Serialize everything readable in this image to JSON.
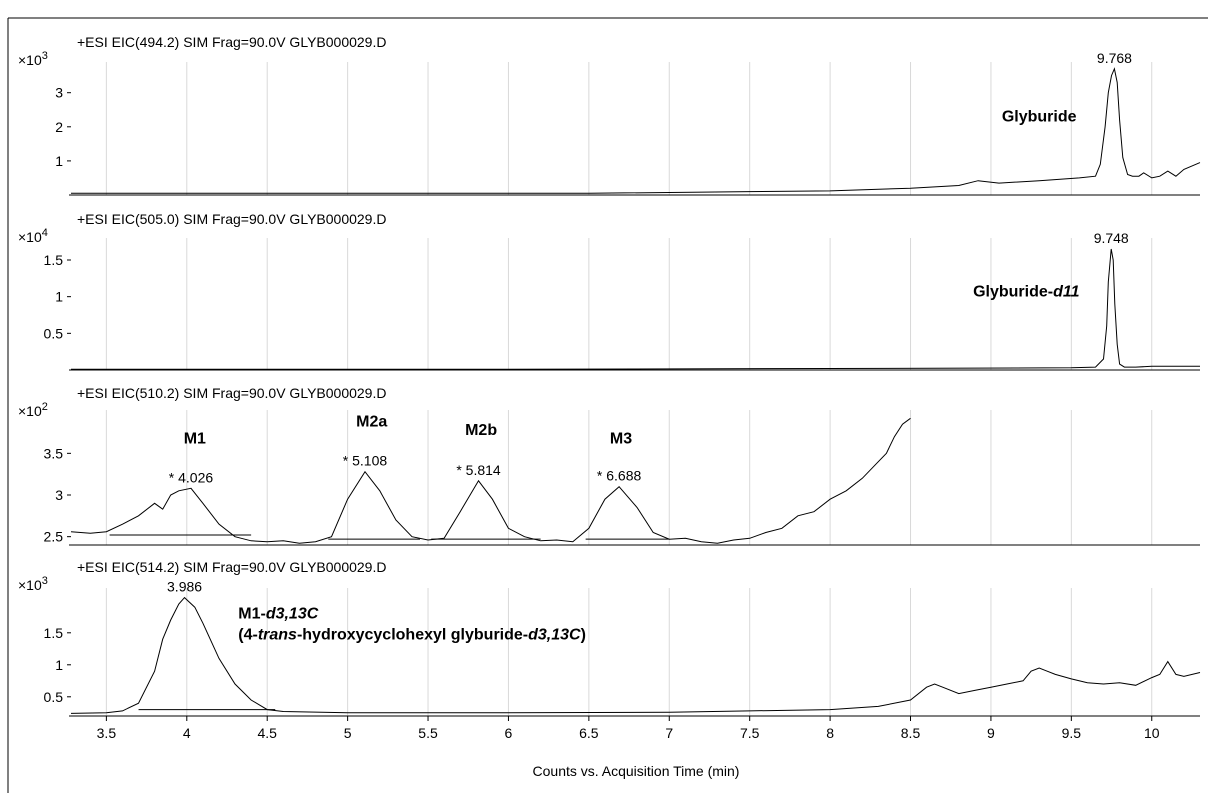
{
  "chart_data": [
    {
      "type": "line",
      "title": "+ESI EIC(494.2) SIM Frag=90.0V GLYB000029.D",
      "scale_base": "×10",
      "scale_exp": "3",
      "ylim": [
        0,
        3.9
      ],
      "yticks": [
        1,
        2,
        3
      ],
      "ytick_labels": [
        "1",
        "2",
        "3"
      ],
      "xlim": [
        3.28,
        10.3
      ],
      "series": [
        {
          "x": [
            3.28,
            5.0,
            6.5,
            7.5,
            8.0,
            8.5,
            8.8,
            8.92,
            9.05,
            9.3,
            9.55,
            9.65,
            9.68,
            9.71,
            9.73,
            9.75,
            9.768,
            9.785,
            9.8,
            9.82,
            9.85,
            9.88,
            9.92,
            9.95,
            10.0,
            10.05,
            10.1,
            10.15,
            10.2,
            10.3
          ],
          "y": [
            0.05,
            0.05,
            0.05,
            0.1,
            0.12,
            0.2,
            0.28,
            0.42,
            0.35,
            0.42,
            0.5,
            0.55,
            0.9,
            2.0,
            3.0,
            3.5,
            3.7,
            3.3,
            2.2,
            1.1,
            0.6,
            0.55,
            0.55,
            0.65,
            0.5,
            0.55,
            0.7,
            0.55,
            0.75,
            0.95
          ]
        }
      ],
      "peaks": [
        {
          "label": "9.768",
          "x": 9.768,
          "y": 3.7
        }
      ],
      "annotations": [
        {
          "lines": [
            [
              {
                "t": "Glyburide"
              }
            ]
          ],
          "x": 9.3,
          "y": 2.15,
          "anchor": "middle"
        }
      ]
    },
    {
      "type": "line",
      "title": "+ESI EIC(505.0) SIM Frag=90.0V GLYB000029.D",
      "scale_base": "×10",
      "scale_exp": "4",
      "ylim": [
        0,
        1.8
      ],
      "yticks": [
        0.5,
        1,
        1.5
      ],
      "ytick_labels": [
        "0.5",
        "1",
        "1.5"
      ],
      "xlim": [
        3.28,
        10.3
      ],
      "series": [
        {
          "x": [
            3.28,
            6.0,
            8.0,
            9.5,
            9.65,
            9.7,
            9.72,
            9.73,
            9.748,
            9.76,
            9.77,
            9.785,
            9.8,
            9.83,
            9.9,
            10.0,
            10.3
          ],
          "y": [
            0.01,
            0.01,
            0.02,
            0.03,
            0.04,
            0.15,
            0.6,
            1.2,
            1.65,
            1.5,
            0.9,
            0.35,
            0.08,
            0.04,
            0.04,
            0.05,
            0.05
          ]
        }
      ],
      "peaks": [
        {
          "label": "9.748",
          "x": 9.748,
          "y": 1.65
        }
      ],
      "annotations": [
        {
          "lines": [
            [
              {
                "t": "Glyburide-"
              },
              {
                "t": "d11",
                "i": true
              }
            ]
          ],
          "x": 9.22,
          "y": 1.0,
          "anchor": "middle"
        }
      ]
    },
    {
      "type": "line",
      "title": "+ESI EIC(510.2) SIM Frag=90.0V GLYB000029.D",
      "scale_base": "×10",
      "scale_exp": "2",
      "ylim": [
        2.4,
        4.02
      ],
      "yticks": [
        2.5,
        3,
        3.5
      ],
      "ytick_labels": [
        "2.5",
        "3",
        "3.5"
      ],
      "xlim": [
        3.28,
        10.3
      ],
      "series": [
        {
          "x": [
            3.28,
            3.4,
            3.5,
            3.6,
            3.7,
            3.8,
            3.85,
            3.9,
            3.95,
            4.026,
            4.1,
            4.2,
            4.3,
            4.4,
            4.5,
            4.6,
            4.7,
            4.8,
            4.9,
            5.0,
            5.108,
            5.2,
            5.3,
            5.4,
            5.5,
            5.6,
            5.7,
            5.814,
            5.9,
            6.0,
            6.1,
            6.2,
            6.3,
            6.4,
            6.5,
            6.6,
            6.688,
            6.8,
            6.9,
            7.0,
            7.1,
            7.2,
            7.3,
            7.4,
            7.5,
            7.6,
            7.7,
            7.8,
            7.9,
            8.0,
            8.1,
            8.2,
            8.3,
            8.35,
            8.4,
            8.45,
            8.5
          ],
          "y": [
            2.56,
            2.54,
            2.56,
            2.65,
            2.75,
            2.9,
            2.83,
            3.0,
            3.05,
            3.08,
            2.9,
            2.65,
            2.5,
            2.45,
            2.44,
            2.45,
            2.42,
            2.44,
            2.5,
            2.95,
            3.28,
            3.05,
            2.7,
            2.5,
            2.46,
            2.48,
            2.8,
            3.17,
            2.95,
            2.6,
            2.5,
            2.45,
            2.46,
            2.44,
            2.6,
            2.95,
            3.1,
            2.85,
            2.55,
            2.47,
            2.48,
            2.44,
            2.42,
            2.46,
            2.48,
            2.55,
            2.6,
            2.75,
            2.8,
            2.95,
            3.05,
            3.2,
            3.4,
            3.5,
            3.7,
            3.85,
            3.92
          ]
        }
      ],
      "baselines": [
        {
          "x1": 3.52,
          "y1": 2.52,
          "x2": 4.4,
          "y2": 2.52
        },
        {
          "x1": 4.88,
          "y1": 2.47,
          "x2": 5.45,
          "y2": 2.47
        },
        {
          "x1": 5.52,
          "y1": 2.47,
          "x2": 6.2,
          "y2": 2.47
        },
        {
          "x1": 6.48,
          "y1": 2.47,
          "x2": 7.0,
          "y2": 2.47
        }
      ],
      "peaks": [
        {
          "label": "* 4.026",
          "x": 4.026,
          "y": 3.08
        },
        {
          "label": "* 5.108",
          "x": 5.108,
          "y": 3.28
        },
        {
          "label": "* 5.814",
          "x": 5.814,
          "y": 3.17
        },
        {
          "label": "* 6.688",
          "x": 6.688,
          "y": 3.1
        }
      ],
      "annotations": [
        {
          "lines": [
            [
              {
                "t": "M1"
              }
            ]
          ],
          "x": 4.05,
          "y": 3.62,
          "anchor": "middle"
        },
        {
          "lines": [
            [
              {
                "t": "M2a"
              }
            ]
          ],
          "x": 5.15,
          "y": 3.82,
          "anchor": "middle"
        },
        {
          "lines": [
            [
              {
                "t": "M2b"
              }
            ]
          ],
          "x": 5.83,
          "y": 3.72,
          "anchor": "middle"
        },
        {
          "lines": [
            [
              {
                "t": "M3"
              }
            ]
          ],
          "x": 6.7,
          "y": 3.62,
          "anchor": "middle"
        }
      ]
    },
    {
      "type": "line",
      "title": "+ESI EIC(514.2) SIM Frag=90.0V GLYB000029.D",
      "scale_base": "×10",
      "scale_exp": "3",
      "ylim": [
        0.2,
        2.2
      ],
      "yticks": [
        0.5,
        1,
        1.5
      ],
      "ytick_labels": [
        "0.5",
        "1",
        "1.5"
      ],
      "xlim": [
        3.28,
        10.3
      ],
      "series": [
        {
          "x": [
            3.28,
            3.5,
            3.6,
            3.7,
            3.8,
            3.85,
            3.9,
            3.95,
            3.986,
            4.05,
            4.1,
            4.2,
            4.3,
            4.4,
            4.5,
            4.6,
            5.0,
            6.0,
            7.0,
            7.5,
            8.0,
            8.3,
            8.5,
            8.6,
            8.65,
            8.7,
            8.8,
            8.9,
            9.0,
            9.1,
            9.2,
            9.25,
            9.3,
            9.35,
            9.4,
            9.5,
            9.6,
            9.7,
            9.8,
            9.9,
            10.0,
            10.05,
            10.1,
            10.15,
            10.2,
            10.3
          ],
          "y": [
            0.24,
            0.25,
            0.28,
            0.4,
            0.9,
            1.4,
            1.7,
            1.95,
            2.05,
            1.9,
            1.65,
            1.1,
            0.7,
            0.45,
            0.3,
            0.27,
            0.25,
            0.25,
            0.26,
            0.28,
            0.3,
            0.35,
            0.45,
            0.65,
            0.7,
            0.65,
            0.55,
            0.6,
            0.65,
            0.7,
            0.75,
            0.9,
            0.95,
            0.9,
            0.85,
            0.78,
            0.72,
            0.7,
            0.72,
            0.68,
            0.8,
            0.85,
            1.05,
            0.85,
            0.82,
            0.88
          ]
        }
      ],
      "baselines": [
        {
          "x1": 3.7,
          "y1": 0.3,
          "x2": 4.55,
          "y2": 0.3
        }
      ],
      "peaks": [
        {
          "label": "3.986",
          "x": 3.986,
          "y": 2.05
        }
      ],
      "annotations": [
        {
          "lines": [
            [
              {
                "t": "M1-"
              },
              {
                "t": "d3,13C",
                "i": true
              }
            ],
            [
              {
                "t": "(4-"
              },
              {
                "t": "trans",
                "i": true
              },
              {
                "t": "-hydroxycyclohexyl glyburide-"
              },
              {
                "t": "d3,13C",
                "i": true
              },
              {
                "t": ")"
              }
            ]
          ],
          "x": 4.32,
          "y": 1.72,
          "anchor": "start"
        }
      ]
    }
  ],
  "x_axis": {
    "ticks": [
      3.5,
      4,
      4.5,
      5,
      5.5,
      6,
      6.5,
      7,
      7.5,
      8,
      8.5,
      9,
      9.5,
      10
    ],
    "tick_labels": [
      "3.5",
      "4",
      "4.5",
      "5",
      "5.5",
      "6",
      "6.5",
      "7",
      "7.5",
      "8",
      "8.5",
      "9",
      "9.5",
      "10"
    ],
    "label": "Counts vs. Acquisition Time (min)"
  },
  "colors": {
    "trace": "#000000",
    "grid": "#d9d9d9",
    "background": "#ffffff"
  }
}
